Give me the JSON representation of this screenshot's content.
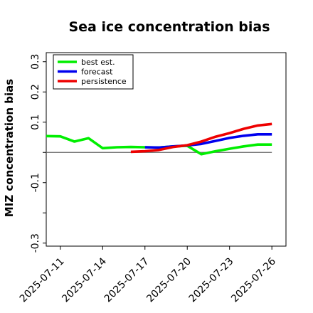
{
  "chart_data": {
    "type": "line",
    "title": "Sea ice concentration bias",
    "xlabel": "",
    "ylabel": "MIZ concentration bias",
    "ylim": [
      -0.31,
      0.33
    ],
    "yticks": [
      -0.3,
      -0.2,
      -0.1,
      0.0,
      0.1,
      0.2,
      0.3
    ],
    "ytick_labels": [
      "-0.3",
      "",
      "-0.1",
      "",
      "0.1",
      "0.2",
      "0.3"
    ],
    "x_ticks": [
      "2025-07-11",
      "2025-07-14",
      "2025-07-17",
      "2025-07-20",
      "2025-07-23",
      "2025-07-26"
    ],
    "highlighted_tick": "2025-07-17",
    "highlight_color": "#228B22",
    "xlim": [
      "2025-07-10",
      "2025-07-27"
    ],
    "reference_line": 0.0,
    "legend_position": "top-left",
    "series": [
      {
        "name": "best est.",
        "color": "#00ee00",
        "x": [
          "2025-07-10",
          "2025-07-11",
          "2025-07-12",
          "2025-07-13",
          "2025-07-14",
          "2025-07-15",
          "2025-07-16",
          "2025-07-17",
          "2025-07-18",
          "2025-07-19",
          "2025-07-20",
          "2025-07-21",
          "2025-07-22",
          "2025-07-23",
          "2025-07-24",
          "2025-07-25",
          "2025-07-26"
        ],
        "values": [
          0.054,
          0.053,
          0.036,
          0.047,
          0.014,
          0.017,
          0.018,
          0.017,
          0.016,
          0.02,
          0.022,
          -0.006,
          0.004,
          0.012,
          0.02,
          0.026,
          0.026
        ]
      },
      {
        "name": "forecast",
        "color": "#0000ee",
        "x": [
          "2025-07-17",
          "2025-07-18",
          "2025-07-19",
          "2025-07-20",
          "2025-07-21",
          "2025-07-22",
          "2025-07-23",
          "2025-07-24",
          "2025-07-25",
          "2025-07-26"
        ],
        "values": [
          0.017,
          0.016,
          0.02,
          0.023,
          0.028,
          0.038,
          0.048,
          0.055,
          0.06,
          0.06
        ]
      },
      {
        "name": "persistence",
        "color": "#ee0000",
        "x": [
          "2025-07-16",
          "2025-07-17",
          "2025-07-18",
          "2025-07-19",
          "2025-07-20",
          "2025-07-21",
          "2025-07-22",
          "2025-07-23",
          "2025-07-24",
          "2025-07-25",
          "2025-07-26"
        ],
        "values": [
          0.002,
          0.004,
          0.008,
          0.018,
          0.024,
          0.036,
          0.052,
          0.064,
          0.078,
          0.089,
          0.094
        ]
      }
    ]
  }
}
